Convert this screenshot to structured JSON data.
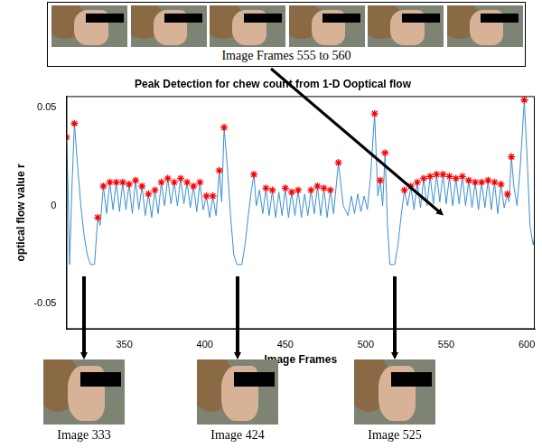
{
  "chart_data": {
    "type": "line",
    "title": "Peak Detection for chew count from 1-D Ooptical flow",
    "x_label": "Image Frames",
    "y_label": "optical flow value r",
    "annotations": [
      "Image Frames 555 to 560",
      "Image 333",
      "Image 424",
      "Image 525"
    ],
    "xlim": [
      314,
      605
    ],
    "xticks": [
      350,
      400,
      450,
      500,
      550,
      600
    ],
    "ylim": [
      -0.063,
      0.056
    ],
    "yticks": [
      -0.05,
      0,
      0.05
    ],
    "grid": false,
    "series": [
      {
        "type": "line",
        "color": "#3d8fd1",
        "marker": "none",
        "line_style": "solid",
        "x": [
          314,
          315,
          316,
          317.5,
          319,
          321,
          323,
          325,
          327,
          329,
          331.5,
          333.5,
          335,
          337,
          339,
          341,
          343,
          345,
          347,
          349,
          351,
          353,
          355,
          357,
          359,
          361,
          363,
          365,
          367,
          369,
          371,
          373,
          375,
          377,
          379,
          381,
          383,
          385,
          387,
          389,
          391,
          393,
          395,
          397,
          399,
          401,
          403,
          405,
          407,
          409,
          410.5,
          412,
          414,
          416,
          418,
          420,
          423,
          425,
          427,
          429,
          430.5,
          432,
          434,
          436,
          438,
          440,
          442,
          444,
          446,
          448,
          450,
          452,
          454,
          456,
          458,
          460,
          462,
          464,
          466,
          468,
          470,
          472,
          474,
          476,
          478,
          480,
          483,
          486,
          489,
          491,
          493,
          495,
          497,
          499,
          501,
          503,
          505.5,
          507.5,
          509,
          510.5,
          512,
          513.5,
          515,
          518,
          520,
          522,
          524,
          526,
          528,
          530,
          532,
          534,
          536,
          538,
          540,
          542,
          544,
          546,
          548,
          550,
          552,
          554,
          556,
          558,
          560,
          562,
          564,
          566,
          568,
          570,
          572,
          574,
          576,
          578,
          580,
          582,
          584,
          586,
          588,
          589,
          590.5,
          592,
          594,
          596,
          598.5,
          600.5,
          602,
          604,
          605
        ],
        "values": [
          0.035,
          0.01,
          -0.03,
          0.01,
          0.042,
          0.02,
          0,
          -0.015,
          -0.025,
          -0.03,
          -0.03,
          -0.006,
          -0.01,
          0.01,
          -0.004,
          0.012,
          -0.002,
          0.012,
          -0.003,
          0.012,
          -0.002,
          0.011,
          -0.004,
          0.013,
          -0.002,
          0.01,
          -0.005,
          0.006,
          -0.006,
          0.008,
          -0.004,
          0.012,
          0,
          0.014,
          0.001,
          0.012,
          0,
          0.014,
          0.001,
          0.012,
          -0.001,
          0.01,
          -0.003,
          0.012,
          -0.002,
          0.005,
          -0.006,
          0.005,
          -0.005,
          0.018,
          0.002,
          0.04,
          0.02,
          -0.005,
          -0.025,
          -0.03,
          -0.03,
          -0.02,
          -0.005,
          0.008,
          0.016,
          0,
          0.008,
          -0.004,
          0.009,
          -0.005,
          0.008,
          -0.006,
          0.007,
          -0.005,
          0.009,
          -0.006,
          0.007,
          -0.005,
          0.008,
          -0.006,
          0.006,
          -0.005,
          0.008,
          -0.004,
          0.01,
          -0.005,
          0.009,
          -0.006,
          0.008,
          -0.004,
          0.022,
          0,
          -0.005,
          0.005,
          -0.004,
          0.006,
          -0.003,
          0.005,
          -0.002,
          0.015,
          0.047,
          0.005,
          0.013,
          0,
          0.027,
          -0.01,
          -0.03,
          -0.03,
          -0.02,
          -0.005,
          0.008,
          0,
          0.01,
          -0.002,
          0.012,
          -0.001,
          0.014,
          0,
          0.015,
          0.001,
          0.016,
          0.002,
          0.016,
          0.001,
          0.015,
          0,
          0.014,
          0.001,
          0.015,
          0,
          0.013,
          -0.001,
          0.012,
          -0.002,
          0.012,
          -0.001,
          0.013,
          -0.002,
          0.012,
          -0.004,
          0.011,
          -0.001,
          0.006,
          0.002,
          0.025,
          0.01,
          0,
          0.02,
          0.054,
          0.02,
          -0.01,
          -0.02,
          -0.015
        ]
      },
      {
        "type": "scatter",
        "color": "#ff0000",
        "marker": "star",
        "x": [
          314,
          319,
          333.5,
          337,
          341,
          345,
          349,
          353,
          357,
          361,
          365,
          369,
          373,
          377,
          381,
          385,
          389,
          393,
          397,
          401,
          405,
          409,
          412,
          430.5,
          438,
          442,
          450,
          454,
          458,
          466,
          470,
          474,
          478,
          483,
          505.5,
          509,
          512,
          524,
          528,
          532,
          536,
          540,
          544,
          548,
          552,
          556,
          560,
          564,
          568,
          572,
          576,
          580,
          584,
          588,
          590.5,
          598.5
        ],
        "values": [
          0.035,
          0.042,
          -0.006,
          0.01,
          0.012,
          0.012,
          0.012,
          0.011,
          0.013,
          0.01,
          0.006,
          0.008,
          0.012,
          0.014,
          0.012,
          0.014,
          0.012,
          0.01,
          0.012,
          0.005,
          0.005,
          0.018,
          0.04,
          0.016,
          0.009,
          0.008,
          0.009,
          0.007,
          0.008,
          0.008,
          0.01,
          0.009,
          0.008,
          0.022,
          0.047,
          0.013,
          0.027,
          0.008,
          0.01,
          0.012,
          0.014,
          0.015,
          0.016,
          0.016,
          0.015,
          0.014,
          0.015,
          0.013,
          0.012,
          0.012,
          0.013,
          0.012,
          0.011,
          0.006,
          0.025,
          0.054
        ]
      }
    ]
  }
}
